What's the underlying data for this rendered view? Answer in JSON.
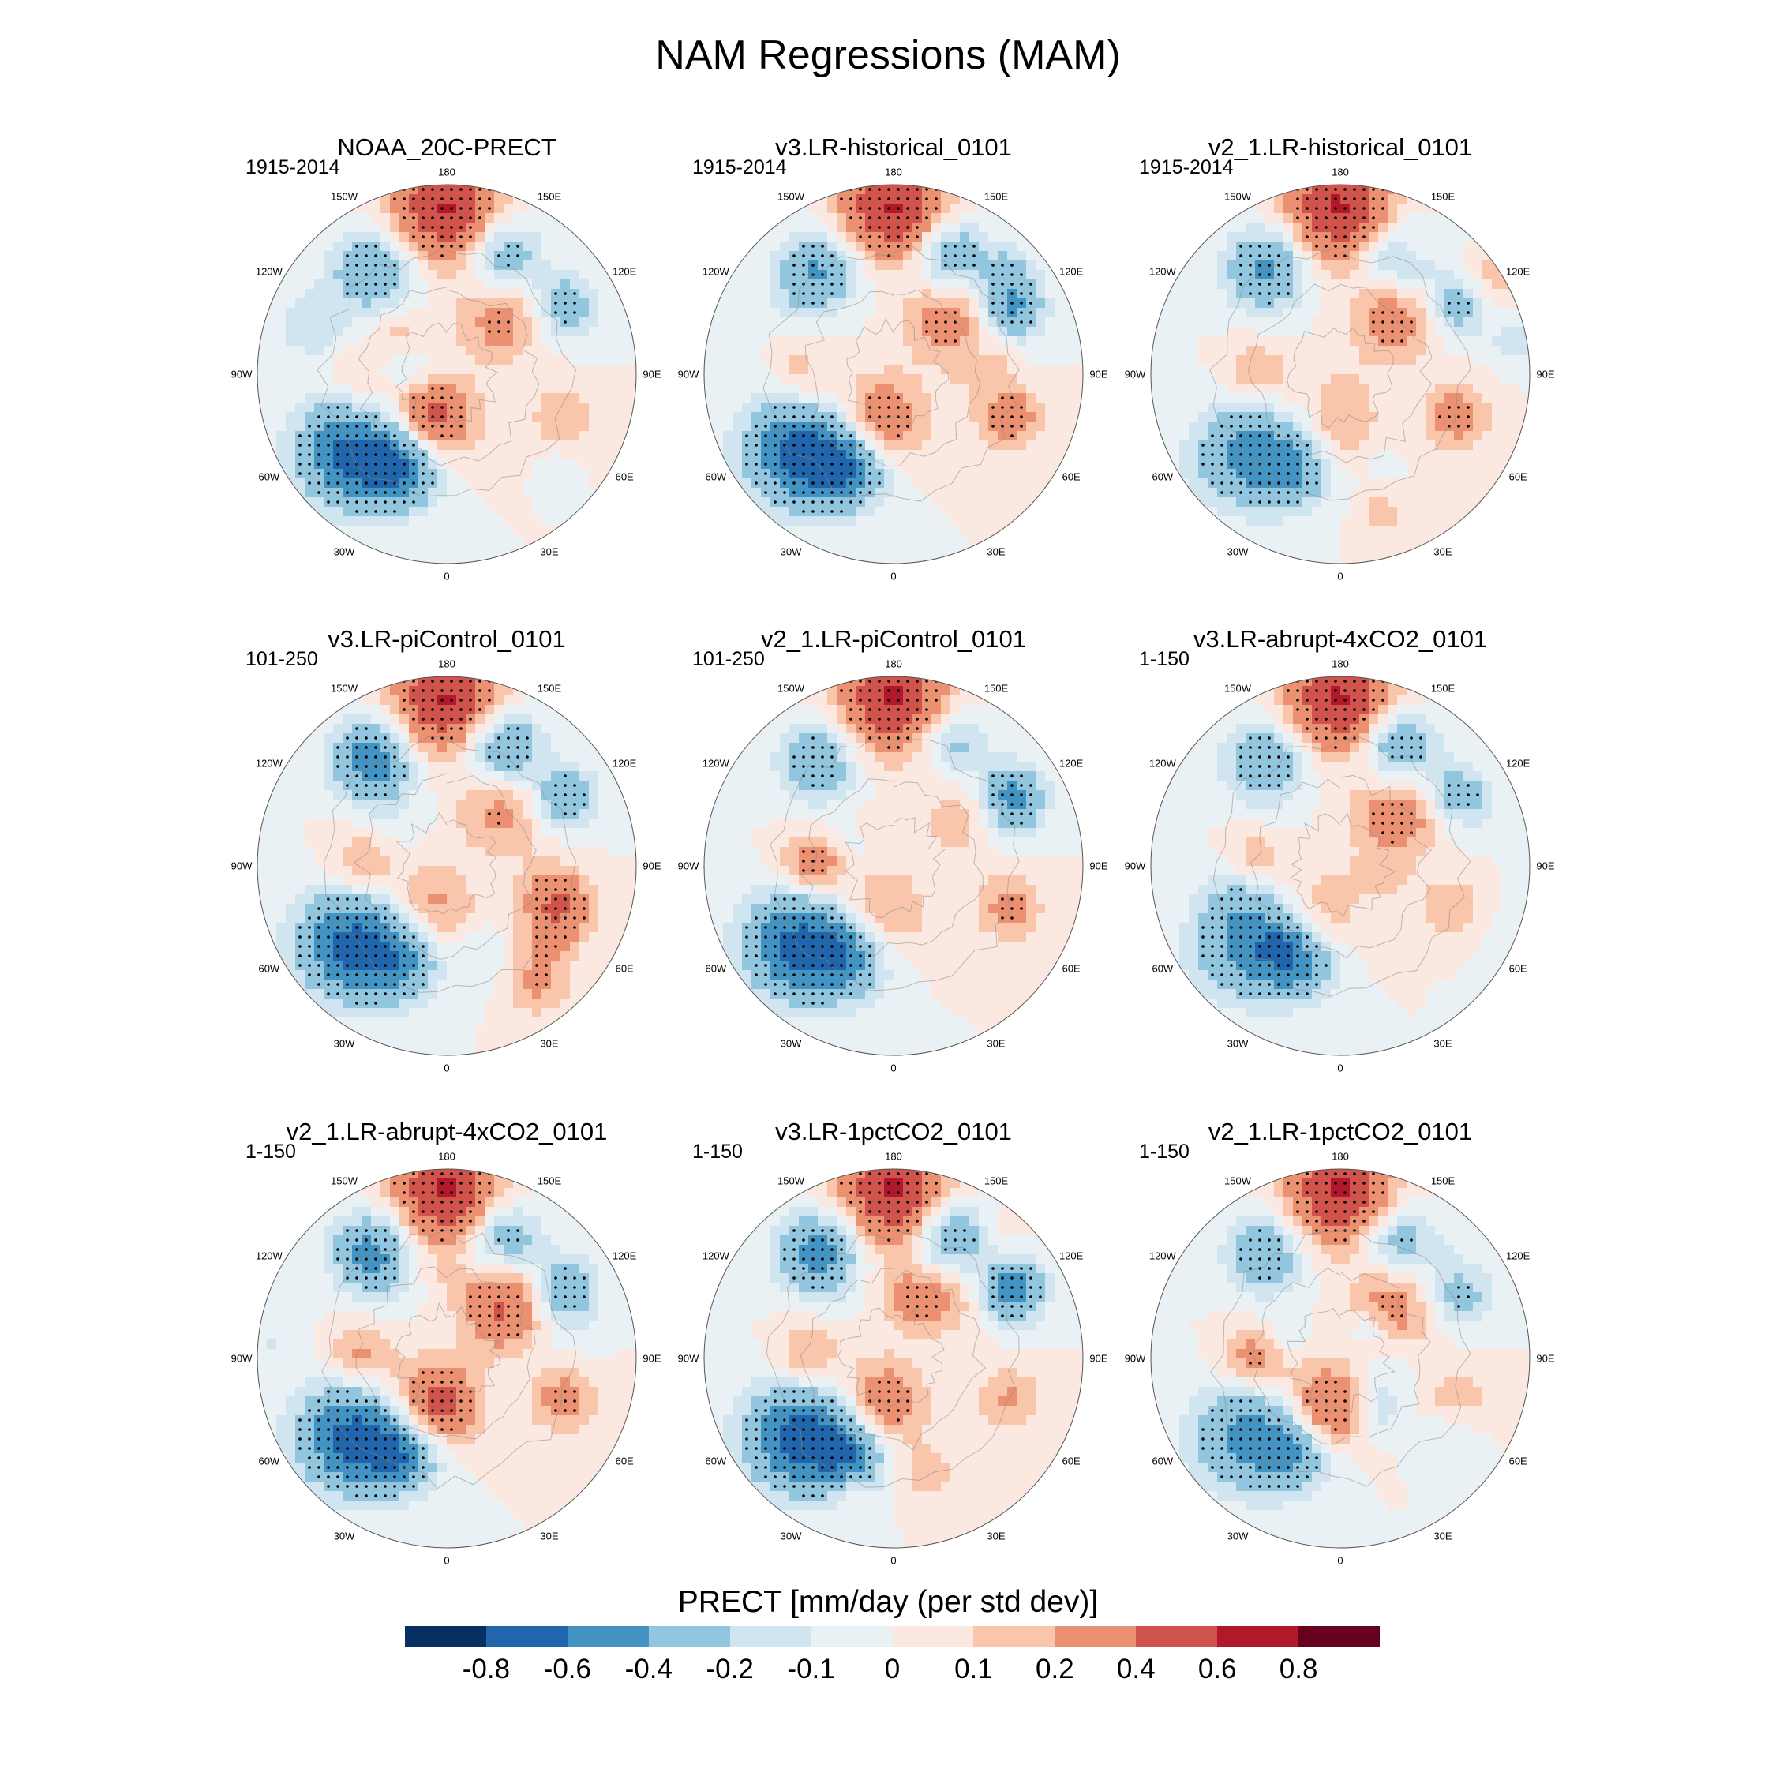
{
  "title": "NAM Regressions (MAM)",
  "panels": [
    {
      "title": "NOAA_20C-PRECT",
      "period": "1915-2014",
      "seed": 11
    },
    {
      "title": "v3.LR-historical_0101",
      "period": "1915-2014",
      "seed": 23
    },
    {
      "title": "v2_1.LR-historical_0101",
      "period": "1915-2014",
      "seed": 37
    },
    {
      "title": "v3.LR-piControl_0101",
      "period": "101-250",
      "seed": 41
    },
    {
      "title": "v2_1.LR-piControl_0101",
      "period": "101-250",
      "seed": 53
    },
    {
      "title": "v3.LR-abrupt-4xCO2_0101",
      "period": "1-150",
      "seed": 67
    },
    {
      "title": "v2_1.LR-abrupt-4xCO2_0101",
      "period": "1-150",
      "seed": 71
    },
    {
      "title": "v3.LR-1pctCO2_0101",
      "period": "1-150",
      "seed": 83
    },
    {
      "title": "v2_1.LR-1pctCO2_0101",
      "period": "1-150",
      "seed": 97
    }
  ],
  "longitude_labels": [
    "180",
    "150E",
    "120E",
    "90E",
    "60E",
    "30E",
    "0",
    "30W",
    "60W",
    "90W",
    "120W",
    "150W"
  ],
  "colorbar": {
    "title": "PRECT [mm/day (per std dev)]",
    "ticks": [
      "-0.8",
      "-0.6",
      "-0.4",
      "-0.2",
      "-0.1",
      "0",
      "0.1",
      "0.2",
      "0.4",
      "0.6",
      "0.8"
    ],
    "colors": [
      "#053061",
      "#2166ac",
      "#4393c3",
      "#92c5de",
      "#d1e5f0",
      "#eaf1f5",
      "#fbe8e0",
      "#f9c5ab",
      "#eb9172",
      "#d0544b",
      "#b2182b",
      "#67001f"
    ]
  }
}
